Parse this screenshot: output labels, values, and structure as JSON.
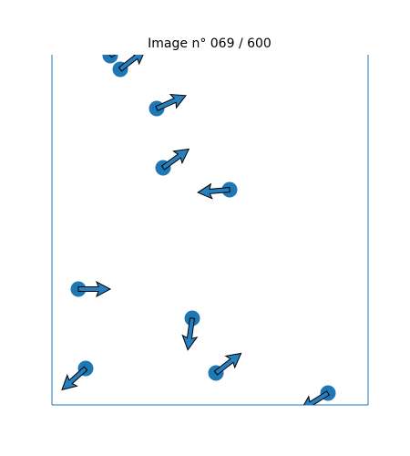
{
  "title": "Image n° 069 / 600",
  "colors": {
    "marker": "#1f77b4",
    "arrow_fill": "#2680bf",
    "arrow_edge": "#000000",
    "axes": "#1f77b4"
  },
  "agents": [
    {
      "id": "agent-1",
      "heading_deg": -38
    },
    {
      "id": "agent-2",
      "heading_deg": -38
    },
    {
      "id": "agent-3",
      "heading_deg": -24
    },
    {
      "id": "agent-4",
      "heading_deg": -36
    },
    {
      "id": "agent-5",
      "heading_deg": 175
    },
    {
      "id": "agent-6",
      "heading_deg": 0
    },
    {
      "id": "agent-7",
      "heading_deg": 98
    },
    {
      "id": "agent-8",
      "heading_deg": 138
    },
    {
      "id": "agent-9",
      "heading_deg": -38
    },
    {
      "id": "agent-10",
      "heading_deg": 148
    }
  ]
}
